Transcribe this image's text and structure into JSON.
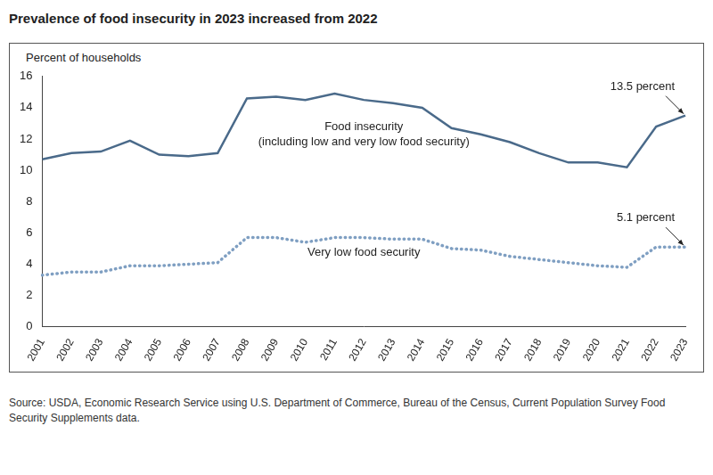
{
  "chart_data": {
    "type": "line",
    "title": "Prevalence of food insecurity in 2023 increased from 2022",
    "y_label": "Percent of households",
    "source": "Source: USDA, Economic Research Service using U.S. Department of Commerce, Bureau of the Census, Current Population Survey Food Security Supplements data.",
    "categories": [
      "2001",
      "2002",
      "2003",
      "2004",
      "2005",
      "2006",
      "2007",
      "2008",
      "2009",
      "2010",
      "2011",
      "2012",
      "2013",
      "2014",
      "2015",
      "2016",
      "2017",
      "2018",
      "2019",
      "2020",
      "2021",
      "2022",
      "2023"
    ],
    "series": [
      {
        "name": "Food insecurity (including low and very low food security)",
        "color": "#4a6a8a",
        "line_style": "solid",
        "marker": "none",
        "values": [
          10.7,
          11.1,
          11.2,
          11.9,
          11.0,
          10.9,
          11.1,
          14.6,
          14.7,
          14.5,
          14.9,
          14.5,
          14.3,
          14.0,
          12.7,
          12.3,
          11.8,
          11.1,
          10.5,
          10.5,
          10.2,
          12.8,
          13.5
        ]
      },
      {
        "name": "Very low food security",
        "color": "#7f9fc2",
        "line_style": "dotted",
        "marker": "none",
        "values": [
          3.3,
          3.5,
          3.5,
          3.9,
          3.9,
          4.0,
          4.1,
          5.7,
          5.7,
          5.4,
          5.7,
          5.7,
          5.6,
          5.6,
          5.0,
          4.9,
          4.5,
          4.3,
          4.1,
          3.9,
          3.8,
          5.1,
          5.1
        ]
      }
    ],
    "annotations": [
      {
        "text": "13.5 percent",
        "x": "2023",
        "y": 13.5
      },
      {
        "text": "5.1 percent",
        "x": "2023",
        "y": 5.1
      }
    ],
    "ylim": [
      0,
      16
    ],
    "yticks": [
      0,
      2,
      4,
      6,
      8,
      10,
      12,
      14,
      16
    ],
    "grid": false
  }
}
